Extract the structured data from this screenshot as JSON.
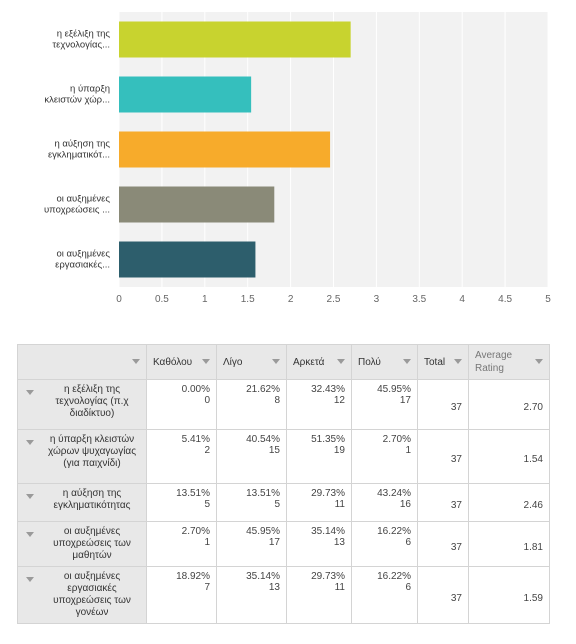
{
  "chart_data": {
    "type": "bar",
    "orientation": "horizontal",
    "categories": [
      "η εξέλιξη της τεχνολογίας...",
      "η ύπαρξη κλειστών χώρ...",
      "η αύξηση της εγκληματικότ...",
      "οι αυξημένες υποχρεώσεις ...",
      "οι αυξημένες εργασιακές..."
    ],
    "category_lines": [
      [
        "η εξέλιξη της",
        "τεχνολογίας..."
      ],
      [
        "η ύπαρξη",
        "κλειστών χώρ..."
      ],
      [
        "η αύξηση της",
        "εγκληματικότ..."
      ],
      [
        "οι αυξημένες",
        "υποχρεώσεις ..."
      ],
      [
        "οι αυξημένες",
        "εργασιακές..."
      ]
    ],
    "values": [
      2.7,
      1.54,
      2.46,
      1.81,
      1.59
    ],
    "colors": [
      "#c8d32f",
      "#35bfbd",
      "#f7ab2b",
      "#8a8a78",
      "#2d5e6c"
    ],
    "xlim": [
      0,
      5
    ],
    "xticks": [
      "0",
      "0.5",
      "1",
      "1.5",
      "2",
      "2.5",
      "3",
      "3.5",
      "4",
      "4.5",
      "5"
    ],
    "grid": true
  },
  "table": {
    "headers": [
      "",
      "Καθόλου",
      "Λίγο",
      "Αρκετά",
      "Πολύ",
      "Total",
      "Average Rating"
    ],
    "rows": [
      {
        "label": "η εξέλιξη της τεχνολογίας (π.χ διαδίκτυο)",
        "cells": [
          {
            "pct": "0.00%",
            "count": "0"
          },
          {
            "pct": "21.62%",
            "count": "8"
          },
          {
            "pct": "32.43%",
            "count": "12"
          },
          {
            "pct": "45.95%",
            "count": "17"
          }
        ],
        "total": "37",
        "rating": "2.70"
      },
      {
        "label": "η ύπαρξη κλειστών χώρων ψυχαγωγίας (για παιχνίδι)",
        "cells": [
          {
            "pct": "5.41%",
            "count": "2"
          },
          {
            "pct": "40.54%",
            "count": "15"
          },
          {
            "pct": "51.35%",
            "count": "19"
          },
          {
            "pct": "2.70%",
            "count": "1"
          }
        ],
        "total": "37",
        "rating": "1.54"
      },
      {
        "label": "η αύξηση της εγκληματικότητας",
        "cells": [
          {
            "pct": "13.51%",
            "count": "5"
          },
          {
            "pct": "13.51%",
            "count": "5"
          },
          {
            "pct": "29.73%",
            "count": "11"
          },
          {
            "pct": "43.24%",
            "count": "16"
          }
        ],
        "total": "37",
        "rating": "2.46"
      },
      {
        "label": "οι αυξημένες υποχρεώσεις των μαθητών",
        "cells": [
          {
            "pct": "2.70%",
            "count": "1"
          },
          {
            "pct": "45.95%",
            "count": "17"
          },
          {
            "pct": "35.14%",
            "count": "13"
          },
          {
            "pct": "16.22%",
            "count": "6"
          }
        ],
        "total": "37",
        "rating": "1.81"
      },
      {
        "label": "οι αυξημένες εργασιακές υποχρεώσεις των γονέων",
        "cells": [
          {
            "pct": "18.92%",
            "count": "7"
          },
          {
            "pct": "35.14%",
            "count": "13"
          },
          {
            "pct": "29.73%",
            "count": "11"
          },
          {
            "pct": "16.22%",
            "count": "6"
          }
        ],
        "total": "37",
        "rating": "1.59"
      }
    ]
  }
}
